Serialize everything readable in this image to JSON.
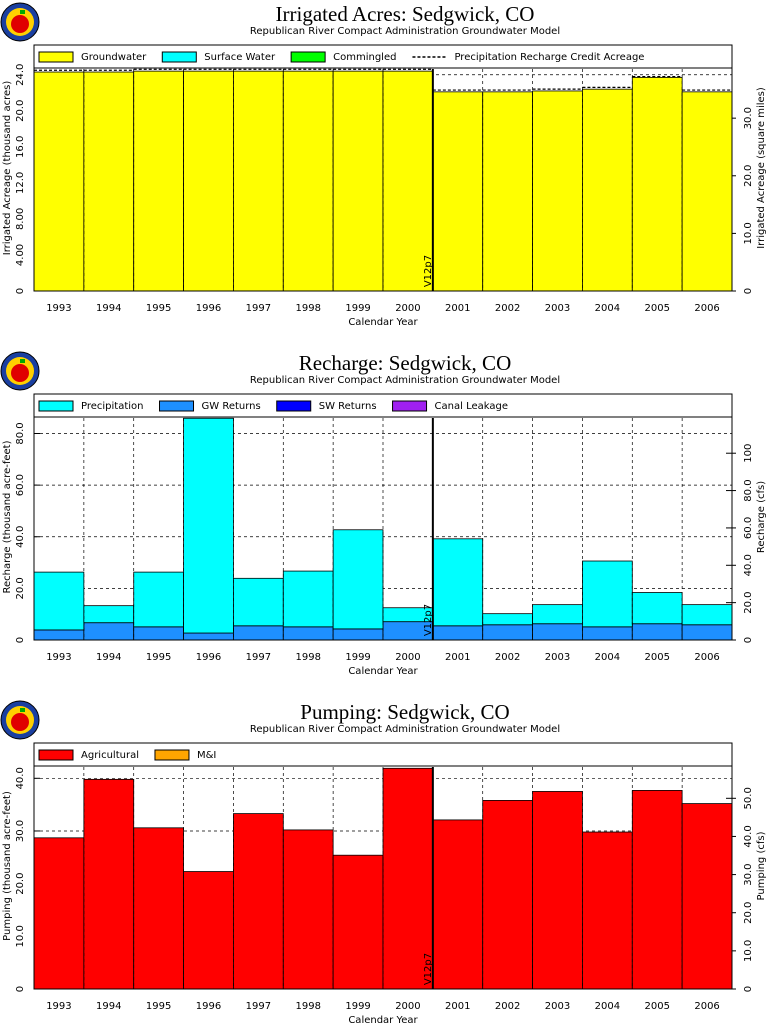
{
  "chart_data": [
    {
      "type": "bar",
      "stacked": true,
      "title": "Irrigated Acres:  Sedgwick, CO",
      "subtitle": "Republican River Compact Administration Groundwater Model",
      "x_label": "Calendar Year",
      "y_label": "Irrigated Acreage (thousand acres)",
      "y2_label": "Irrigated Acreage (square miles)",
      "annotation": "V12p7",
      "categories": [
        "1993",
        "1994",
        "1995",
        "1996",
        "1997",
        "1998",
        "1999",
        "2000",
        "2001",
        "2002",
        "2003",
        "2004",
        "2005",
        "2006"
      ],
      "series": [
        {
          "name": "Groundwater",
          "color": "#ffff00",
          "values": [
            24.3,
            24.3,
            24.4,
            24.4,
            24.4,
            24.4,
            24.4,
            24.4,
            22.1,
            22.1,
            22.2,
            22.4,
            23.7,
            22.1
          ]
        },
        {
          "name": "Surface Water",
          "color": "#00ffff",
          "values": [
            0,
            0,
            0,
            0,
            0,
            0,
            0,
            0,
            0,
            0,
            0,
            0,
            0,
            0
          ]
        },
        {
          "name": "Commingled",
          "color": "#00ff00",
          "values": [
            0,
            0,
            0,
            0,
            0,
            0,
            0,
            0,
            0,
            0,
            0,
            0,
            0,
            0
          ]
        },
        {
          "name": "Precipitation Recharge Credit Acreage",
          "color": "#000000",
          "type": "line",
          "dashed": true,
          "values": [
            24.5,
            24.5,
            24.6,
            24.6,
            24.6,
            24.6,
            24.6,
            24.6,
            22.3,
            22.3,
            22.4,
            22.6,
            23.8,
            22.3
          ]
        }
      ],
      "ylim": [
        0,
        27.3
      ],
      "yticks": [
        0,
        {
          "value": 4,
          "label": "4.00"
        },
        {
          "value": 8,
          "label": "8.00"
        },
        {
          "value": 12,
          "label": "12.0"
        },
        {
          "value": 16,
          "label": "16.0"
        },
        {
          "value": 20,
          "label": "20.0"
        },
        {
          "value": 24,
          "label": "24.0"
        }
      ],
      "y2lim": [
        0,
        42.7
      ],
      "y2ticks": [
        0,
        {
          "value": 10,
          "label": "10.0"
        },
        {
          "value": 20,
          "label": "20.0"
        },
        {
          "value": 30,
          "label": "30.0"
        }
      ],
      "grid": true,
      "legend": "top"
    },
    {
      "type": "bar",
      "stacked": true,
      "title": "Recharge:  Sedgwick, CO",
      "subtitle": "Republican River Compact Administration Groundwater Model",
      "x_label": "Calendar Year",
      "y_label": "Recharge (thousand acre-feet)",
      "y2_label": "Recharge (cfs)",
      "annotation": "V12p7",
      "categories": [
        "1993",
        "1994",
        "1995",
        "1996",
        "1997",
        "1998",
        "1999",
        "2000",
        "2001",
        "2002",
        "2003",
        "2004",
        "2005",
        "2006"
      ],
      "series": [
        {
          "name": "GW Returns",
          "color": "#1e90ff",
          "values": [
            3.9,
            6.7,
            5.1,
            2.7,
            5.5,
            5.1,
            4.3,
            7.1,
            5.5,
            5.9,
            6.3,
            5.1,
            6.3,
            5.9
          ]
        },
        {
          "name": "SW Returns",
          "color": "#0000ff",
          "values": [
            0,
            0,
            0,
            0,
            0,
            0,
            0,
            0,
            0,
            0,
            0,
            0,
            0,
            0
          ]
        },
        {
          "name": "Canal Leakage",
          "color": "#a020f0",
          "values": [
            0,
            0,
            0,
            0,
            0,
            0,
            0,
            0,
            0,
            0,
            0,
            0,
            0,
            0
          ]
        },
        {
          "name": "Precipitation",
          "color": "#00ffff",
          "values": [
            22.4,
            6.6,
            21.2,
            83.2,
            18.4,
            21.6,
            38.4,
            5.4,
            33.7,
            4.3,
            7.4,
            25.5,
            12.1,
            7.8
          ]
        }
      ],
      "legend_order": [
        3,
        0,
        1,
        2
      ],
      "ylim": [
        0,
        95.3
      ],
      "yticks": [
        0,
        {
          "value": 20,
          "label": "20.0"
        },
        {
          "value": 40,
          "label": "40.0"
        },
        {
          "value": 60,
          "label": "60.0"
        },
        {
          "value": 80,
          "label": "80.0"
        }
      ],
      "y2lim": [
        0,
        131.7
      ],
      "y2ticks": [
        0,
        {
          "value": 20,
          "label": "20.0"
        },
        {
          "value": 40,
          "label": "40.0"
        },
        {
          "value": 60,
          "label": "60.0"
        },
        {
          "value": 80,
          "label": "80.0"
        },
        100
      ],
      "grid": true,
      "legend": "top"
    },
    {
      "type": "bar",
      "stacked": true,
      "title": "Pumping:  Sedgwick, CO",
      "subtitle": "Republican River Compact Administration Groundwater Model",
      "x_label": "Calendar Year",
      "y_label": "Pumping (thousand acre-feet)",
      "y2_label": "Pumping (cfs)",
      "annotation": "V12p7",
      "categories": [
        "1993",
        "1994",
        "1995",
        "1996",
        "1997",
        "1998",
        "1999",
        "2000",
        "2001",
        "2002",
        "2003",
        "2004",
        "2005",
        "2006"
      ],
      "series": [
        {
          "name": "Agricultural",
          "color": "#ff0000",
          "values": [
            28.7,
            39.8,
            30.6,
            22.3,
            33.3,
            30.2,
            25.4,
            41.9,
            32.1,
            35.8,
            37.5,
            29.8,
            37.7,
            35.2
          ]
        },
        {
          "name": "M&I",
          "color": "#ffa500",
          "values": [
            0,
            0,
            0,
            0,
            0,
            0,
            0,
            0,
            0,
            0,
            0,
            0,
            0,
            0
          ]
        }
      ],
      "ylim": [
        0,
        46.7
      ],
      "yticks": [
        0,
        {
          "value": 10,
          "label": "10.0"
        },
        {
          "value": 20,
          "label": "20.0"
        },
        {
          "value": 30,
          "label": "30.0"
        },
        {
          "value": 40,
          "label": "40.0"
        }
      ],
      "y2lim": [
        0,
        64.5
      ],
      "y2ticks": [
        0,
        {
          "value": 10,
          "label": "10.0"
        },
        {
          "value": 20,
          "label": "20.0"
        },
        {
          "value": 30,
          "label": "30.0"
        },
        {
          "value": 40,
          "label": "40.0"
        },
        {
          "value": 50,
          "label": "50.0"
        }
      ],
      "grid": true,
      "legend": "top"
    }
  ]
}
